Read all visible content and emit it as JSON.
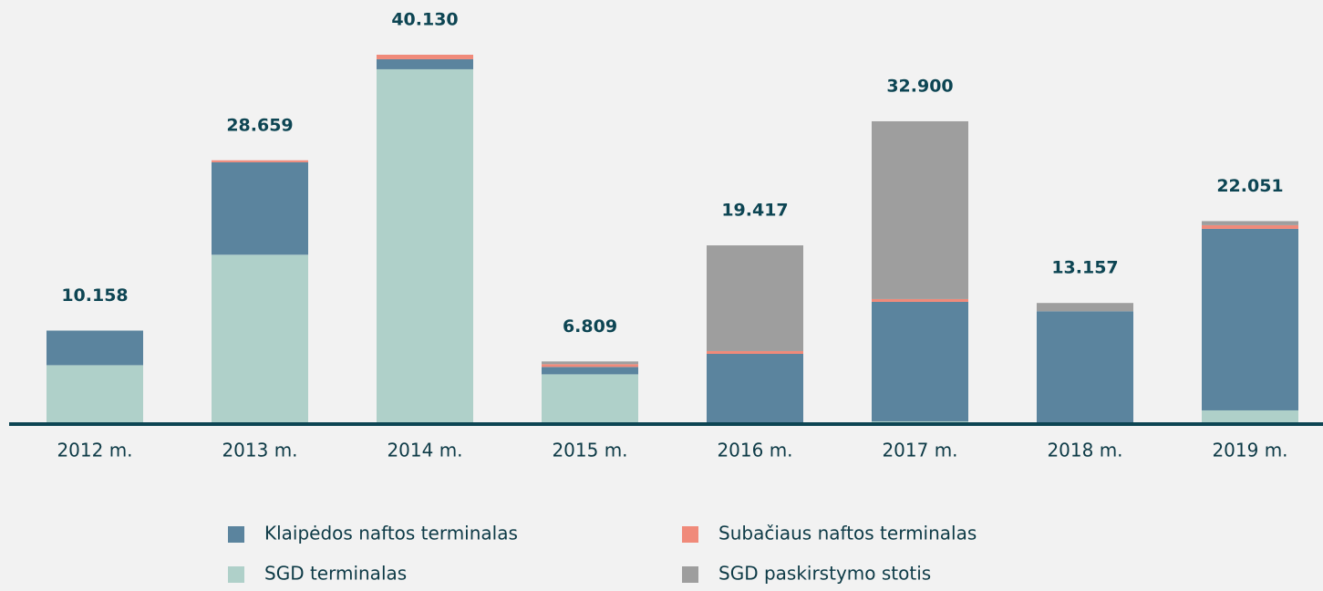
{
  "chart_data": {
    "type": "stacked_bar",
    "categories": [
      "2012 m.",
      "2013 m.",
      "2014 m.",
      "2015 m.",
      "2016 m.",
      "2017 m.",
      "2018 m.",
      "2019 m."
    ],
    "series": [
      {
        "name": "SGD terminalas",
        "color": "#afd0c9",
        "values": [
          6.4,
          18.4,
          38.55,
          5.409,
          null,
          0.3,
          null,
          1.49
        ]
      },
      {
        "name": "Klaipėdos naftos terminalas",
        "color": "#5b849e",
        "values": [
          3.758,
          10.05,
          1.09,
          0.8,
          7.63,
          12.98,
          12.257,
          19.72
        ]
      },
      {
        "name": "Subačiaus naftos terminalas",
        "color": "#f08a7a",
        "values": [
          null,
          0.209,
          0.49,
          0.3,
          0.3,
          0.3,
          null,
          0.4
        ]
      },
      {
        "name": "SGD paskirstymo stotis",
        "color": "#9e9e9e",
        "values": [
          null,
          null,
          null,
          0.3,
          11.487,
          19.32,
          0.9,
          0.441
        ]
      }
    ],
    "totals": [
      10.158,
      28.659,
      40.13,
      6.809,
      19.417,
      32.9,
      13.157,
      22.051
    ],
    "total_labels": [
      "10.158",
      "28.659",
      "40.130",
      "6.809",
      "19.417",
      "32.900",
      "13.157",
      "22.051"
    ],
    "legend_order": [
      1,
      2,
      0,
      3
    ]
  }
}
